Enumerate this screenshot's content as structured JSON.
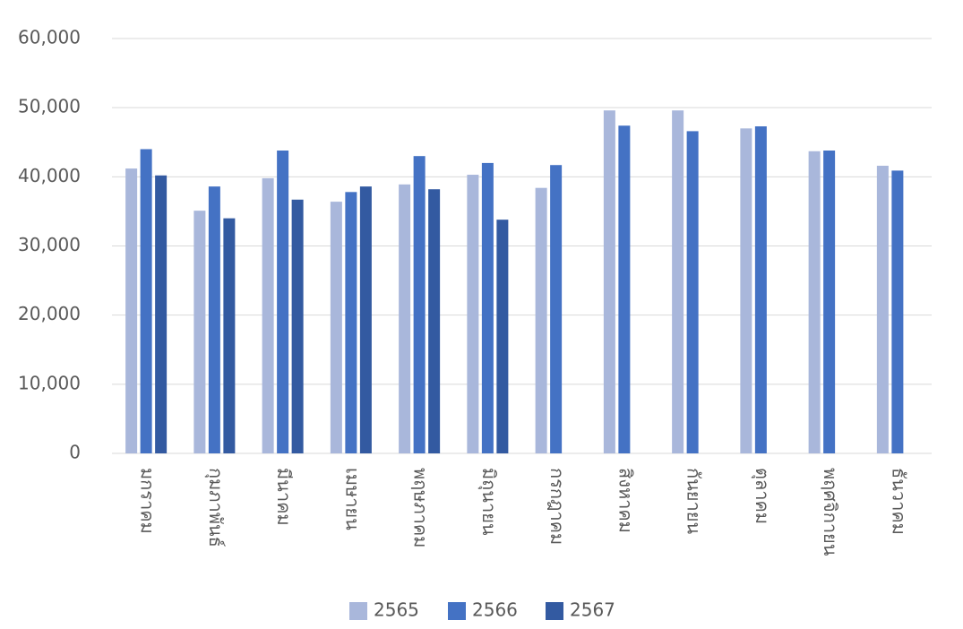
{
  "chart_data": {
    "type": "bar",
    "categories": [
      "มกราคม",
      "กุมภาพันธ์",
      "มีนาคม",
      "เมษายน",
      "พฤษภาคม",
      "มิถุนายน",
      "กรกฎาคม",
      "สิงหาคม",
      "กันยายน",
      "ตุลาคม",
      "พฤศจิกายน",
      "ธันวาคม"
    ],
    "series": [
      {
        "name": "2565",
        "color": "#a9b7db",
        "values": [
          41200,
          35100,
          39800,
          36400,
          38900,
          40300,
          38400,
          49600,
          49600,
          47000,
          43700,
          41600
        ]
      },
      {
        "name": "2566",
        "color": "#4472c4",
        "values": [
          44000,
          38600,
          43800,
          37800,
          43000,
          42000,
          41700,
          47400,
          46600,
          47300,
          43800,
          40900
        ]
      },
      {
        "name": "2567",
        "color": "#335aa1",
        "values": [
          40200,
          34000,
          36700,
          38600,
          38200,
          33800,
          null,
          null,
          null,
          null,
          null,
          null
        ]
      }
    ],
    "ylim": [
      0,
      60000
    ],
    "yticks": [
      0,
      {
        "value": 10000,
        "label": "10,000"
      },
      {
        "value": 20000,
        "label": "20,000"
      },
      {
        "value": 30000,
        "label": "30,000"
      },
      {
        "value": 40000,
        "label": "40,000"
      },
      {
        "value": 50000,
        "label": "50,000"
      },
      {
        "value": 60000,
        "label": "60,000"
      }
    ],
    "grid": true,
    "legend": "bottom"
  }
}
